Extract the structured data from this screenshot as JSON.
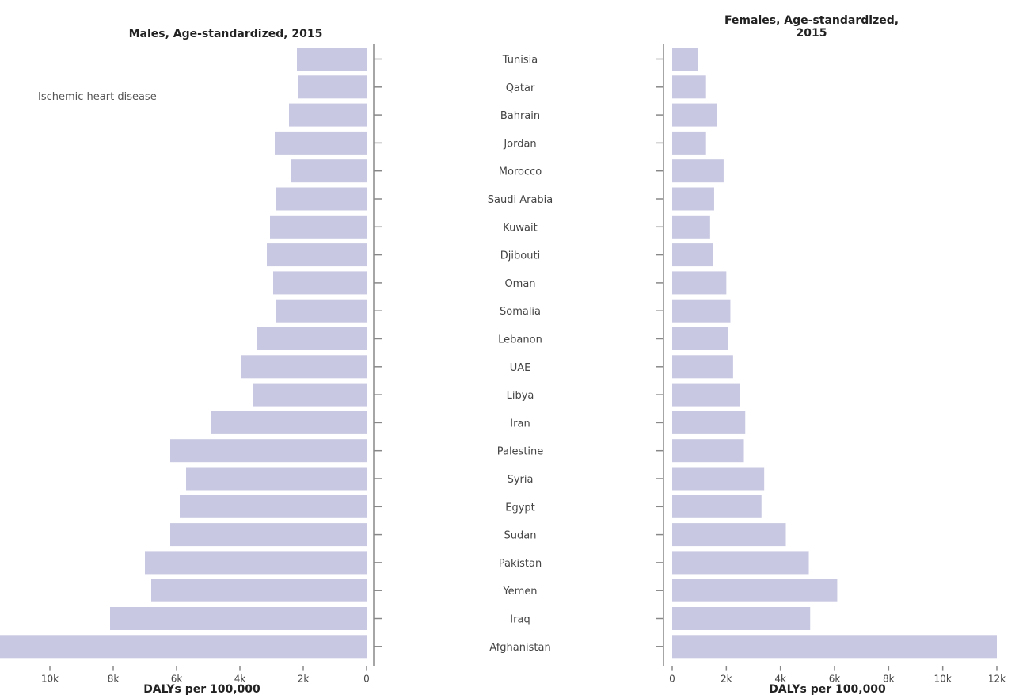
{
  "colors": {
    "bar": "#c8c8e2",
    "axis": "#888888",
    "text": "#222222"
  },
  "chart_data": {
    "type": "bar",
    "orientation": "horizontal",
    "categories": [
      "Tunisia",
      "Qatar",
      "Bahrain",
      "Jordan",
      "Morocco",
      "Saudi Arabia",
      "Kuwait",
      "Djibouti",
      "Oman",
      "Somalia",
      "Lebanon",
      "UAE",
      "Libya",
      "Iran",
      "Palestine",
      "Syria",
      "Egypt",
      "Sudan",
      "Pakistan",
      "Yemen",
      "Iraq",
      "Afghanistan"
    ],
    "series": [
      {
        "name": "Ischemic heart disease",
        "panel_title": "Males, Age-standardized, 2015",
        "values": [
          2200,
          2150,
          2450,
          2900,
          2400,
          2850,
          3050,
          3150,
          2950,
          2850,
          3450,
          3950,
          3600,
          4900,
          6200,
          5700,
          5900,
          6200,
          7000,
          6800,
          8100,
          11800
        ],
        "xlim": [
          12000,
          0
        ],
        "xticks": [
          "10k",
          "8k",
          "6k",
          "4k",
          "2k",
          "0"
        ],
        "xlabel": "DALYs per 100,000"
      },
      {
        "name": "Ischemic heart disease",
        "panel_title": "Females, Age-standardized, 2015",
        "values": [
          950,
          1250,
          1650,
          1250,
          1900,
          1550,
          1400,
          1500,
          2000,
          2150,
          2050,
          2250,
          2500,
          2700,
          2650,
          3400,
          3300,
          4200,
          5050,
          6100,
          5100,
          12000
        ],
        "xlim": [
          0,
          12000
        ],
        "xticks": [
          "0",
          "2k",
          "4k",
          "6k",
          "8k",
          "10k",
          "12k"
        ],
        "xlabel": "DALYs per 100,000"
      }
    ],
    "legend": "Ischemic heart disease",
    "legend_position": "top-left",
    "grid": false
  }
}
